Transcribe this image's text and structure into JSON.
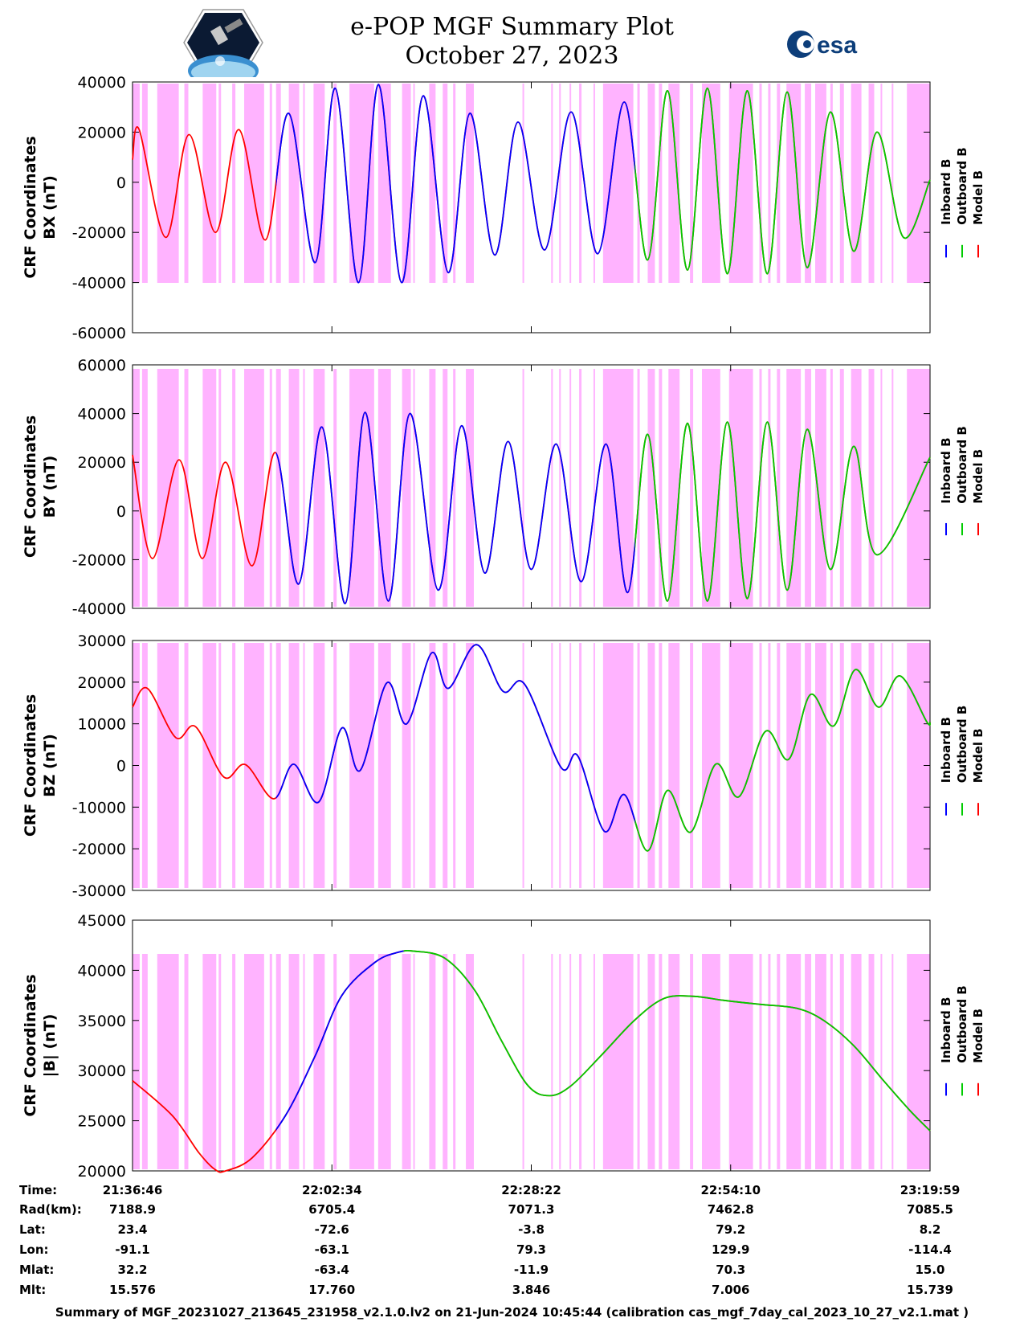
{
  "header": {
    "title": "e-POP MGF Summary Plot",
    "date": "October 27, 2023",
    "esa_logo_text": "esa"
  },
  "legend": {
    "entries": [
      {
        "label": "Inboard B",
        "color": "#0000ff"
      },
      {
        "label": "Outboard B",
        "color": "#00cc00"
      },
      {
        "label": "Model B",
        "color": "#ff0000"
      }
    ]
  },
  "colors": {
    "background_band": "#ffb3ff",
    "inboard": "#0000ff",
    "outboard": "#00cc00",
    "model": "#ff0000"
  },
  "chart_data": [
    {
      "type": "line",
      "ylabel_1": "CRF Coordinates",
      "ylabel_2": "BX (nT)",
      "ylim": [
        -60000,
        40000
      ],
      "yticks": [
        40000,
        20000,
        0,
        -20000,
        -40000,
        -60000
      ],
      "ytick_labels": [
        "40000",
        "20000",
        "0",
        "-20000",
        "-40000",
        "-60000"
      ],
      "series": [
        {
          "name": "BX",
          "points": [
            [
              0,
              9000
            ],
            [
              0.00833,
              21000
            ],
            [
              0.04167,
              -22000
            ],
            [
              0.07083,
              19000
            ],
            [
              0.10417,
              -20000
            ],
            [
              0.13333,
              21000
            ],
            [
              0.16667,
              -23000
            ],
            [
              0.19583,
              27500
            ],
            [
              0.22917,
              -32000
            ],
            [
              0.25417,
              37500
            ],
            [
              0.28333,
              -40000
            ],
            [
              0.30833,
              39000
            ],
            [
              0.3375,
              -40000
            ],
            [
              0.36458,
              34500
            ],
            [
              0.39583,
              -36000
            ],
            [
              0.42292,
              27500
            ],
            [
              0.45417,
              -29000
            ],
            [
              0.48333,
              24000
            ],
            [
              0.51667,
              -27000
            ],
            [
              0.55,
              28000
            ],
            [
              0.58333,
              -28500
            ],
            [
              0.61667,
              32000
            ],
            [
              0.64583,
              -31000
            ],
            [
              0.67083,
              36500
            ],
            [
              0.69583,
              -35000
            ],
            [
              0.72083,
              37500
            ],
            [
              0.74583,
              -36500
            ],
            [
              0.77083,
              36500
            ],
            [
              0.79583,
              -36500
            ],
            [
              0.82083,
              36000
            ],
            [
              0.84583,
              -34000
            ],
            [
              0.875,
              28000
            ],
            [
              0.90417,
              -27500
            ],
            [
              0.93333,
              20000
            ],
            [
              0.96667,
              -22000
            ],
            [
              1.0,
              1000
            ]
          ]
        }
      ]
    },
    {
      "type": "line",
      "ylabel_1": "CRF Coordinates",
      "ylabel_2": "BY (nT)",
      "ylim": [
        -40000,
        60000
      ],
      "yticks": [
        60000,
        40000,
        20000,
        0,
        -20000,
        -40000
      ],
      "ytick_labels": [
        "60000",
        "40000",
        "20000",
        "0",
        "-20000",
        "-40000"
      ],
      "series": [
        {
          "name": "BY",
          "points": [
            [
              0,
              23000
            ],
            [
              0.025,
              -19500
            ],
            [
              0.05833,
              21000
            ],
            [
              0.0875,
              -19500
            ],
            [
              0.11667,
              20000
            ],
            [
              0.15,
              -22500
            ],
            [
              0.17917,
              24000
            ],
            [
              0.20833,
              -30000
            ],
            [
              0.2375,
              34500
            ],
            [
              0.26667,
              -38000
            ],
            [
              0.29167,
              40500
            ],
            [
              0.32083,
              -37000
            ],
            [
              0.34792,
              40000
            ],
            [
              0.38333,
              -32500
            ],
            [
              0.4125,
              35000
            ],
            [
              0.44167,
              -25500
            ],
            [
              0.47083,
              28500
            ],
            [
              0.5,
              -24000
            ],
            [
              0.53125,
              27500
            ],
            [
              0.5625,
              -29000
            ],
            [
              0.59375,
              27500
            ],
            [
              0.62083,
              -33500
            ],
            [
              0.64583,
              31500
            ],
            [
              0.67083,
              -37000
            ],
            [
              0.69583,
              36000
            ],
            [
              0.72083,
              -37000
            ],
            [
              0.74583,
              36500
            ],
            [
              0.77083,
              -36000
            ],
            [
              0.79583,
              36500
            ],
            [
              0.82083,
              -32500
            ],
            [
              0.84583,
              33500
            ],
            [
              0.875,
              -24000
            ],
            [
              0.90417,
              26500
            ],
            [
              0.93333,
              -18000
            ],
            [
              1.0,
              22000
            ]
          ]
        }
      ]
    },
    {
      "type": "line",
      "ylabel_1": "CRF Coordinates",
      "ylabel_2": "BZ (nT)",
      "ylim": [
        -30000,
        30000
      ],
      "yticks": [
        30000,
        20000,
        10000,
        0,
        -10000,
        -20000,
        -30000
      ],
      "ytick_labels": [
        "30000",
        "20000",
        "10000",
        "0",
        "-10000",
        "-20000",
        "-30000"
      ],
      "series": [
        {
          "name": "BZ",
          "points": [
            [
              0,
              14000
            ],
            [
              0.01875,
              18500
            ],
            [
              0.05417,
              6700
            ],
            [
              0.07917,
              9300
            ],
            [
              0.11458,
              -2800
            ],
            [
              0.14167,
              200
            ],
            [
              0.17708,
              -8000
            ],
            [
              0.20208,
              300
            ],
            [
              0.23333,
              -8800
            ],
            [
              0.2625,
              9000
            ],
            [
              0.28542,
              -1200
            ],
            [
              0.31875,
              19800
            ],
            [
              0.34375,
              10000
            ],
            [
              0.375,
              27000
            ],
            [
              0.39583,
              18500
            ],
            [
              0.43125,
              29000
            ],
            [
              0.46458,
              17800
            ],
            [
              0.49167,
              19500
            ],
            [
              0.5375,
              -500
            ],
            [
              0.55833,
              2300
            ],
            [
              0.59167,
              -15800
            ],
            [
              0.61667,
              -7000
            ],
            [
              0.64583,
              -20500
            ],
            [
              0.67083,
              -6000
            ],
            [
              0.7,
              -16000
            ],
            [
              0.73125,
              300
            ],
            [
              0.76042,
              -7500
            ],
            [
              0.79375,
              8200
            ],
            [
              0.82292,
              1500
            ],
            [
              0.85,
              17000
            ],
            [
              0.87917,
              9500
            ],
            [
              0.90625,
              23000
            ],
            [
              0.93542,
              14000
            ],
            [
              0.9625,
              21500
            ],
            [
              0.99583,
              10500
            ],
            [
              1.0,
              10500
            ]
          ]
        }
      ]
    },
    {
      "type": "line",
      "ylabel_1": "CRF Coordinates",
      "ylabel_2": "|B| (nT)",
      "ylim": [
        20000,
        45000
      ],
      "yticks": [
        45000,
        40000,
        35000,
        30000,
        25000,
        20000
      ],
      "ytick_labels": [
        "45000",
        "40000",
        "35000",
        "30000",
        "25000",
        "20000"
      ],
      "series": [
        {
          "name": "|B|",
          "points": [
            [
              0,
              29000
            ],
            [
              0.05,
              25500
            ],
            [
              0.08333,
              21800
            ],
            [
              0.10417,
              20100
            ],
            [
              0.11667,
              20000
            ],
            [
              0.15,
              21300
            ],
            [
              0.19167,
              25500
            ],
            [
              0.22917,
              31500
            ],
            [
              0.2625,
              37500
            ],
            [
              0.30417,
              40800
            ],
            [
              0.33333,
              41800
            ],
            [
              0.35417,
              41900
            ],
            [
              0.39167,
              41200
            ],
            [
              0.42917,
              38000
            ],
            [
              0.4625,
              33000
            ],
            [
              0.49583,
              28500
            ],
            [
              0.52292,
              27500
            ],
            [
              0.55,
              28500
            ],
            [
              0.5875,
              31500
            ],
            [
              0.62917,
              35000
            ],
            [
              0.66667,
              37200
            ],
            [
              0.70417,
              37400
            ],
            [
              0.74167,
              37000
            ],
            [
              0.7875,
              36600
            ],
            [
              0.83333,
              36200
            ],
            [
              0.86667,
              35000
            ],
            [
              0.90417,
              32500
            ],
            [
              0.94167,
              29000
            ],
            [
              0.975,
              26000
            ],
            [
              1.0,
              24000
            ]
          ]
        }
      ]
    }
  ],
  "time_axis": {
    "ticks": [
      {
        "time": "21:36:46",
        "rad": "7188.9",
        "lat": "23.4",
        "lon": "-91.1",
        "mlat": "32.2",
        "mlt": "15.576"
      },
      {
        "time": "22:02:34",
        "rad": "6705.4",
        "lat": "-72.6",
        "lon": "-63.1",
        "mlat": "-63.4",
        "mlt": "17.760"
      },
      {
        "time": "22:28:22",
        "rad": "7071.3",
        "lat": "-3.8",
        "lon": "79.3",
        "mlat": "-11.9",
        "mlt": "3.846"
      },
      {
        "time": "22:54:10",
        "rad": "7462.8",
        "lat": "79.2",
        "lon": "129.9",
        "mlat": "70.3",
        "mlt": "7.006"
      },
      {
        "time": "23:19:59",
        "rad": "7085.5",
        "lat": "8.2",
        "lon": "-114.4",
        "mlat": "15.0",
        "mlt": "15.739"
      }
    ]
  },
  "info_labels": {
    "time": "Time:",
    "rad": "Rad(km):",
    "lat": "Lat:",
    "lon": "Lon:",
    "mlat": "Mlat:",
    "mlt": "Mlt:"
  },
  "footer": "Summary of MGF_20231027_213645_231958_v2.1.0.lv2 on 21-Jun-2024 10:45:44 (calibration cas_mgf_7day_cal_2023_10_27_v2.1.mat )"
}
